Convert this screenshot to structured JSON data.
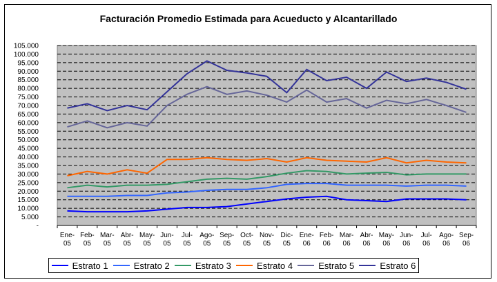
{
  "chart_data": {
    "type": "line",
    "title": "Facturación Promedio Estimada para Acueducto y Alcantarillado",
    "xlabel": "",
    "ylabel": "",
    "ylim": [
      0,
      105000
    ],
    "yticks": [
      "-",
      "5.000",
      "10.000",
      "15.000",
      "20.000",
      "25.000",
      "30.000",
      "35.000",
      "40.000",
      "45.000",
      "50.000",
      "55.000",
      "60.000",
      "65.000",
      "70.000",
      "75.000",
      "80.000",
      "85.000",
      "90.000",
      "95.000",
      "100.000",
      "105.000"
    ],
    "grid": true,
    "legend_position": "bottom",
    "categories": [
      [
        "Ene-",
        "05"
      ],
      [
        "Feb-",
        "05"
      ],
      [
        "Mar-",
        "05"
      ],
      [
        "Abr-",
        "05"
      ],
      [
        "May-",
        "05"
      ],
      [
        "Jun-",
        "05"
      ],
      [
        "Jul-",
        "05"
      ],
      [
        "Ago-",
        "05"
      ],
      [
        "Sep-",
        "05"
      ],
      [
        "Oct-",
        "05"
      ],
      [
        "Nov-",
        "05"
      ],
      [
        "Dic-",
        "05"
      ],
      [
        "Ene-",
        "06"
      ],
      [
        "Feb-",
        "06"
      ],
      [
        "Mar-",
        "06"
      ],
      [
        "Abr-",
        "06"
      ],
      [
        "May-",
        "06"
      ],
      [
        "Jun-",
        "06"
      ],
      [
        "Jul-",
        "06"
      ],
      [
        "Ago-",
        "06"
      ],
      [
        "Sep-",
        "06"
      ]
    ],
    "series": [
      {
        "name": "Estrato 1",
        "color": "#0000ff",
        "values": [
          8500,
          8000,
          8000,
          8000,
          8500,
          9500,
          10500,
          10500,
          11000,
          12500,
          14000,
          15500,
          16500,
          17000,
          15000,
          14500,
          14000,
          15500,
          15500,
          15500,
          15000
        ]
      },
      {
        "name": "Estrato 2",
        "color": "#3366ff",
        "values": [
          17000,
          17000,
          17000,
          17500,
          17500,
          19000,
          19500,
          20500,
          21000,
          21000,
          22000,
          24000,
          24500,
          24500,
          23500,
          23500,
          23500,
          23000,
          23500,
          23500,
          23000
        ]
      },
      {
        "name": "Estrato 3",
        "color": "#339966",
        "values": [
          22000,
          23500,
          22500,
          23500,
          23500,
          24000,
          25500,
          27000,
          27500,
          27000,
          28500,
          30500,
          32000,
          31500,
          30000,
          30500,
          31000,
          29500,
          30000,
          30000,
          30000
        ]
      },
      {
        "name": "Estrato 4",
        "color": "#ff6600",
        "values": [
          29000,
          31500,
          30000,
          32500,
          30500,
          38500,
          38500,
          39500,
          38500,
          38000,
          39000,
          37000,
          39500,
          38000,
          37500,
          37000,
          39500,
          36500,
          38000,
          37000,
          36500
        ]
      },
      {
        "name": "Estrato 5",
        "color": "#666699",
        "values": [
          57500,
          61000,
          57000,
          60000,
          58000,
          70000,
          76500,
          81000,
          76500,
          78500,
          76000,
          72000,
          79000,
          72000,
          74000,
          68500,
          73000,
          71000,
          73500,
          70000,
          66000
        ]
      },
      {
        "name": "Estrato 6",
        "color": "#333399",
        "values": [
          68500,
          71000,
          67000,
          70000,
          67500,
          78000,
          88500,
          96000,
          90500,
          89000,
          87000,
          77500,
          91000,
          84500,
          86500,
          80000,
          89500,
          84000,
          86000,
          83500,
          79500
        ]
      }
    ]
  }
}
